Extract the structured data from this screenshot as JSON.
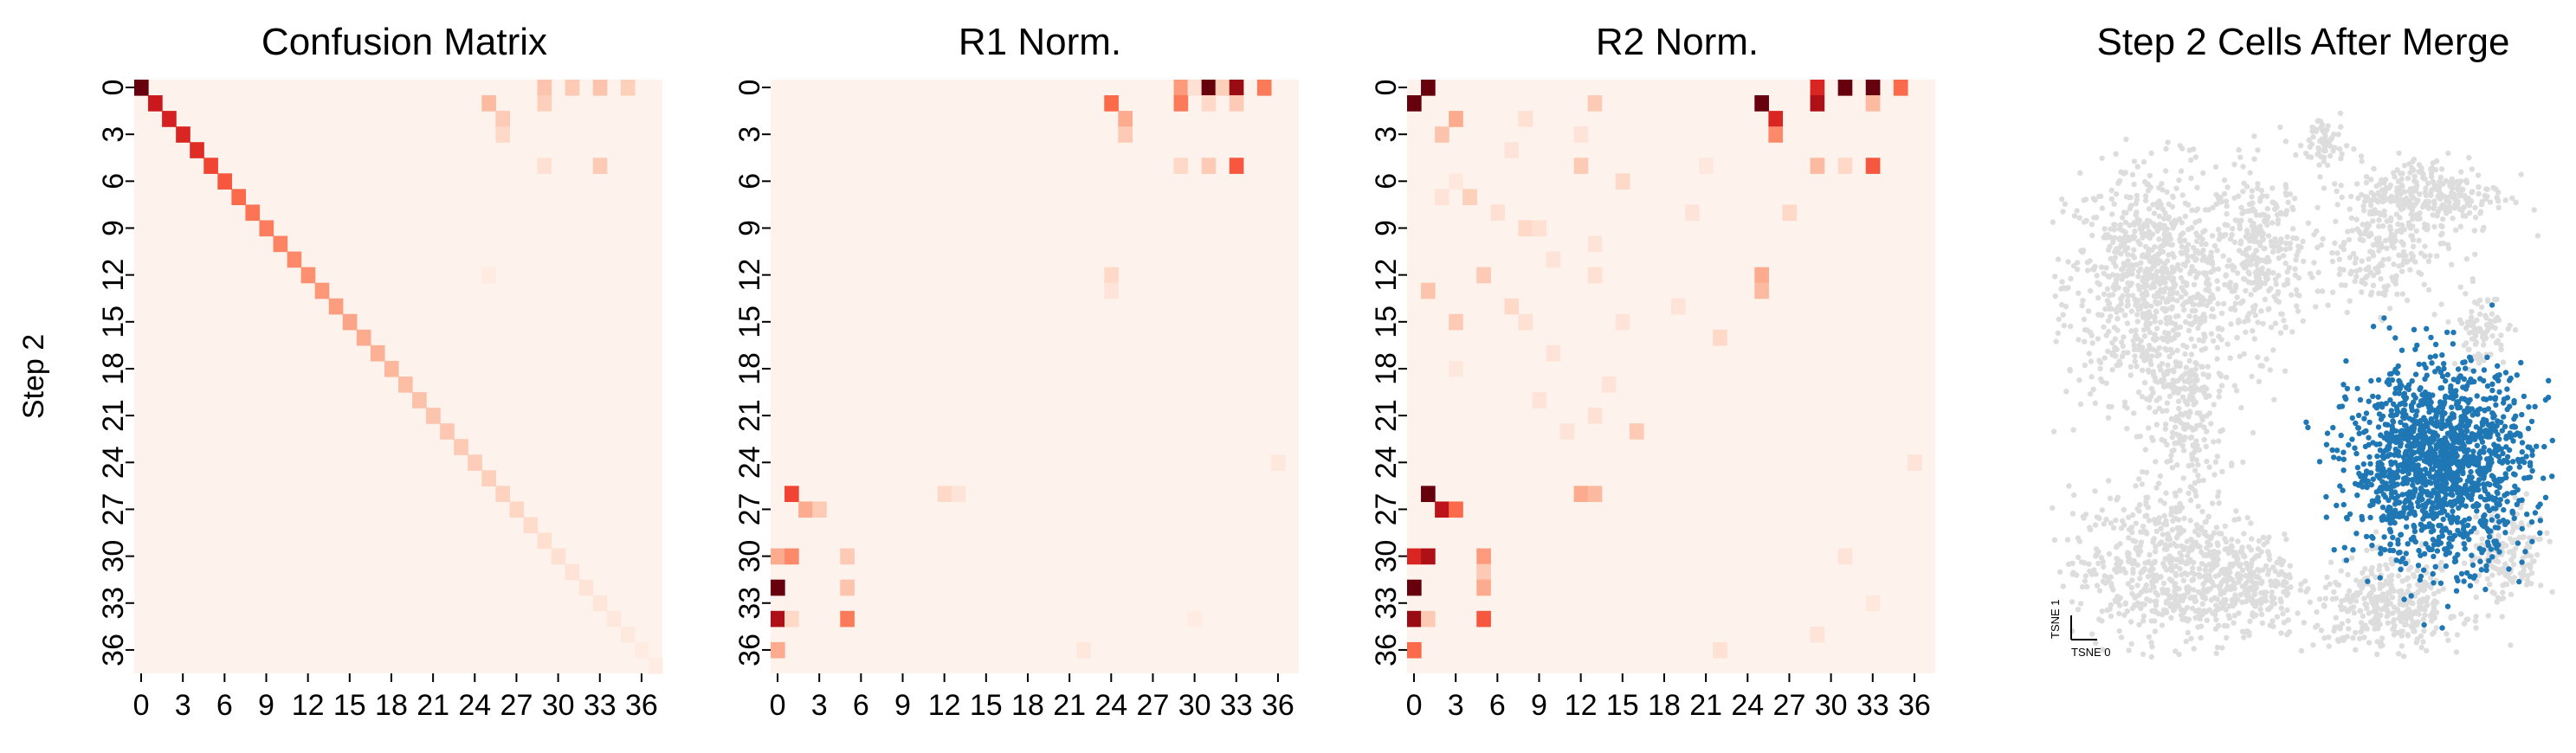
{
  "figure": {
    "ylabel": "Step 2"
  },
  "chart_data": [
    {
      "type": "heatmap",
      "title": "Confusion Matrix",
      "ylabel": "Step 2",
      "xlabel": "",
      "n_rows": 38,
      "n_cols": 38,
      "background": "#fef2ec",
      "xticks": [
        0,
        3,
        6,
        9,
        12,
        15,
        18,
        21,
        24,
        27,
        30,
        33,
        36
      ],
      "yticks": [
        0,
        3,
        6,
        9,
        12,
        15,
        18,
        21,
        24,
        27,
        30,
        33,
        36
      ],
      "diagonal_intensity": [
        1.0,
        0.75,
        0.72,
        0.7,
        0.68,
        0.6,
        0.55,
        0.5,
        0.47,
        0.44,
        0.42,
        0.4,
        0.38,
        0.36,
        0.34,
        0.32,
        0.3,
        0.28,
        0.26,
        0.24,
        0.23,
        0.22,
        0.21,
        0.2,
        0.19,
        0.18,
        0.17,
        0.16,
        0.14,
        0.13,
        0.12,
        0.11,
        0.1,
        0.09,
        0.08,
        0.07,
        0.06,
        0.05
      ],
      "cells": [
        [
          0,
          29,
          0.22
        ],
        [
          0,
          31,
          0.2
        ],
        [
          0,
          33,
          0.22
        ],
        [
          0,
          35,
          0.18
        ],
        [
          1,
          25,
          0.25
        ],
        [
          1,
          29,
          0.18
        ],
        [
          2,
          26,
          0.2
        ],
        [
          3,
          26,
          0.15
        ],
        [
          5,
          29,
          0.12
        ],
        [
          5,
          33,
          0.2
        ],
        [
          12,
          25,
          0.06
        ]
      ]
    },
    {
      "type": "heatmap",
      "title": "R1 Norm.",
      "xlabel": "",
      "n_rows": 38,
      "n_cols": 38,
      "background": "#fef2ec",
      "xticks": [
        0,
        3,
        6,
        9,
        12,
        15,
        18,
        21,
        24,
        27,
        30,
        33,
        36
      ],
      "yticks": [
        0,
        3,
        6,
        9,
        12,
        15,
        18,
        21,
        24,
        27,
        30,
        33,
        36
      ],
      "cells": [
        [
          0,
          29,
          0.35
        ],
        [
          0,
          30,
          0.12
        ],
        [
          0,
          31,
          1.0
        ],
        [
          0,
          32,
          0.18
        ],
        [
          0,
          33,
          0.9
        ],
        [
          0,
          35,
          0.45
        ],
        [
          1,
          24,
          0.5
        ],
        [
          1,
          29,
          0.45
        ],
        [
          1,
          31,
          0.15
        ],
        [
          1,
          33,
          0.2
        ],
        [
          2,
          25,
          0.3
        ],
        [
          3,
          25,
          0.2
        ],
        [
          5,
          29,
          0.15
        ],
        [
          5,
          31,
          0.2
        ],
        [
          5,
          33,
          0.55
        ],
        [
          12,
          24,
          0.15
        ],
        [
          13,
          24,
          0.1
        ],
        [
          24,
          36,
          0.08
        ],
        [
          26,
          1,
          0.6
        ],
        [
          27,
          2,
          0.3
        ],
        [
          27,
          3,
          0.2
        ],
        [
          26,
          12,
          0.15
        ],
        [
          26,
          13,
          0.1
        ],
        [
          30,
          0,
          0.3
        ],
        [
          30,
          1,
          0.4
        ],
        [
          30,
          5,
          0.2
        ],
        [
          32,
          0,
          1.0
        ],
        [
          32,
          5,
          0.22
        ],
        [
          34,
          0,
          0.85
        ],
        [
          34,
          1,
          0.15
        ],
        [
          34,
          5,
          0.45
        ],
        [
          34,
          30,
          0.06
        ],
        [
          36,
          0,
          0.3
        ],
        [
          36,
          22,
          0.08
        ]
      ]
    },
    {
      "type": "heatmap",
      "title": "R2 Norm.",
      "xlabel": "",
      "n_rows": 38,
      "n_cols": 38,
      "background": "#fef2ec",
      "xticks": [
        0,
        3,
        6,
        9,
        12,
        15,
        18,
        21,
        24,
        27,
        30,
        33,
        36
      ],
      "yticks": [
        0,
        3,
        6,
        9,
        12,
        15,
        18,
        21,
        24,
        27,
        30,
        33,
        36
      ],
      "cells": [
        [
          0,
          1,
          1.0
        ],
        [
          0,
          29,
          0.7
        ],
        [
          0,
          31,
          1.0
        ],
        [
          0,
          33,
          1.0
        ],
        [
          0,
          35,
          0.5
        ],
        [
          1,
          0,
          1.0
        ],
        [
          1,
          25,
          1.0
        ],
        [
          1,
          29,
          0.85
        ],
        [
          1,
          33,
          0.25
        ],
        [
          2,
          3,
          0.3
        ],
        [
          2,
          26,
          0.7
        ],
        [
          3,
          2,
          0.22
        ],
        [
          3,
          26,
          0.4
        ],
        [
          2,
          8,
          0.12
        ],
        [
          1,
          13,
          0.2
        ],
        [
          3,
          12,
          0.1
        ],
        [
          5,
          12,
          0.2
        ],
        [
          5,
          29,
          0.25
        ],
        [
          5,
          31,
          0.15
        ],
        [
          5,
          33,
          0.55
        ],
        [
          5,
          21,
          0.08
        ],
        [
          4,
          7,
          0.1
        ],
        [
          6,
          3,
          0.08
        ],
        [
          6,
          15,
          0.15
        ],
        [
          7,
          2,
          0.1
        ],
        [
          7,
          4,
          0.18
        ],
        [
          8,
          6,
          0.12
        ],
        [
          8,
          27,
          0.15
        ],
        [
          8,
          20,
          0.1
        ],
        [
          9,
          8,
          0.15
        ],
        [
          9,
          9,
          0.12
        ],
        [
          10,
          13,
          0.1
        ],
        [
          11,
          10,
          0.1
        ],
        [
          12,
          5,
          0.2
        ],
        [
          12,
          25,
          0.3
        ],
        [
          13,
          25,
          0.25
        ],
        [
          13,
          1,
          0.22
        ],
        [
          12,
          13,
          0.12
        ],
        [
          14,
          7,
          0.15
        ],
        [
          14,
          19,
          0.1
        ],
        [
          15,
          3,
          0.2
        ],
        [
          15,
          8,
          0.12
        ],
        [
          15,
          15,
          0.1
        ],
        [
          16,
          22,
          0.15
        ],
        [
          17,
          10,
          0.1
        ],
        [
          18,
          3,
          0.08
        ],
        [
          19,
          14,
          0.1
        ],
        [
          20,
          9,
          0.1
        ],
        [
          21,
          13,
          0.12
        ],
        [
          22,
          16,
          0.2
        ],
        [
          22,
          11,
          0.1
        ],
        [
          24,
          36,
          0.1
        ],
        [
          26,
          1,
          1.0
        ],
        [
          26,
          12,
          0.3
        ],
        [
          26,
          13,
          0.25
        ],
        [
          27,
          2,
          0.8
        ],
        [
          27,
          3,
          0.5
        ],
        [
          30,
          0,
          0.7
        ],
        [
          30,
          1,
          0.85
        ],
        [
          30,
          5,
          0.35
        ],
        [
          30,
          31,
          0.1
        ],
        [
          31,
          5,
          0.2
        ],
        [
          32,
          0,
          1.0
        ],
        [
          32,
          5,
          0.3
        ],
        [
          33,
          33,
          0.08
        ],
        [
          34,
          0,
          0.9
        ],
        [
          34,
          1,
          0.2
        ],
        [
          34,
          5,
          0.55
        ],
        [
          35,
          29,
          0.1
        ],
        [
          36,
          0,
          0.5
        ],
        [
          36,
          22,
          0.12
        ]
      ]
    },
    {
      "type": "scatter",
      "title": "Step 2 Cells After Merge",
      "xlabel": "TSNE 0",
      "ylabel": "TSNE 1",
      "axes_visible": false,
      "colors": {
        "background_points": "#dddddd",
        "highlight_points": "#1f77b4"
      },
      "background_clusters": [
        {
          "cx": -21,
          "cy": 22,
          "sx": 6.5,
          "sy": 9,
          "n": 900
        },
        {
          "cx": -16,
          "cy": -2,
          "sx": 3,
          "sy": 4,
          "n": 120
        },
        {
          "cx": -5,
          "cy": 26,
          "sx": 3,
          "sy": 7,
          "n": 280
        },
        {
          "cx": 4,
          "cy": 44,
          "sx": 1.5,
          "sy": 2.5,
          "n": 60
        },
        {
          "cx": 12,
          "cy": 28,
          "sx": 5,
          "sy": 5,
          "n": 250
        },
        {
          "cx": 20,
          "cy": 36,
          "sx": 5.5,
          "sy": 3,
          "n": 260
        },
        {
          "cx": 27,
          "cy": 15,
          "sx": 2,
          "sy": 3,
          "n": 90
        },
        {
          "cx": -19,
          "cy": -22,
          "sx": 7,
          "sy": 6,
          "n": 620
        },
        {
          "cx": -7,
          "cy": -25,
          "sx": 3.5,
          "sy": 4,
          "n": 200
        },
        {
          "cx": 14,
          "cy": -28,
          "sx": 5.5,
          "sy": 3.5,
          "n": 380
        },
        {
          "cx": 31,
          "cy": -20,
          "sx": 2.8,
          "sy": 4,
          "n": 160
        },
        {
          "cx": -17,
          "cy": 6,
          "sx": 3,
          "sy": 2.5,
          "n": 90
        }
      ],
      "highlight_cluster": {
        "cx": 21,
        "cy": -6,
        "sx": 6.5,
        "sy": 7.5,
        "n": 1500
      },
      "xlim": [
        -36,
        38
      ],
      "ylim": [
        -36,
        50
      ]
    }
  ]
}
